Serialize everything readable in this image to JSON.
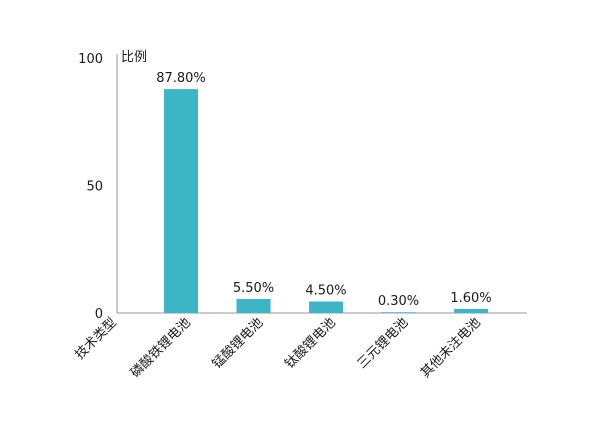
{
  "chart_data": {
    "type": "bar",
    "xlabel": "技术类型",
    "ylabel": "比例",
    "categories": [
      "磷酸铁锂电池",
      "锰酸锂电池",
      "钛酸锂电池",
      "三元锂电池",
      "其他未注电池"
    ],
    "values": [
      87.8,
      5.5,
      4.5,
      0.3,
      1.6
    ],
    "data_labels": [
      "87.80%",
      "5.50%",
      "4.50%",
      "0.30%",
      "1.60%"
    ],
    "ylim": [
      0,
      100
    ],
    "yticks": [
      0,
      50,
      100
    ],
    "grid": false,
    "legend": "none",
    "bar_color": "#3db5c4",
    "axis_color": "#999999"
  }
}
